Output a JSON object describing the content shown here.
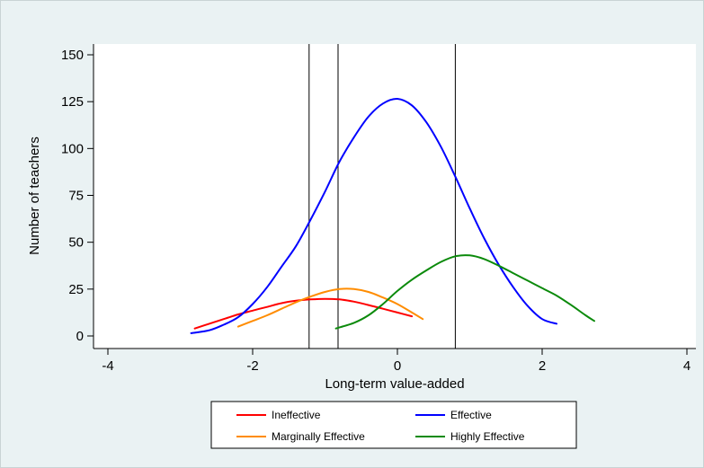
{
  "chart_data": {
    "type": "line",
    "title": "",
    "xlabel": "Long-term value-added",
    "ylabel": "Number of teachers",
    "xlim": [
      -4,
      4
    ],
    "ylim": [
      0,
      150
    ],
    "x_ticks": [
      -4,
      -2,
      0,
      2,
      4
    ],
    "x_tick_labels": [
      "-4",
      "-2",
      "0",
      "2",
      "4"
    ],
    "y_ticks": [
      0,
      25,
      50,
      75,
      100,
      125,
      150
    ],
    "y_tick_labels": [
      "0",
      "25",
      "50",
      "75",
      "100",
      "125",
      "150"
    ],
    "grid": false,
    "legend_placement": "bottom",
    "vertical_lines": [
      -1.22,
      -0.82,
      0.8
    ],
    "series": [
      {
        "name": "Ineffective",
        "color": "#ff0000",
        "x": [
          -2.8,
          -2.6,
          -2.4,
          -2.2,
          -2.0,
          -1.8,
          -1.6,
          -1.4,
          -1.2,
          -1.0,
          -0.8,
          -0.6,
          -0.4,
          -0.2,
          0.0,
          0.2
        ],
        "y": [
          4,
          6.5,
          9,
          11.5,
          13.5,
          15.5,
          17.5,
          18.8,
          19.5,
          19.8,
          19.5,
          18.3,
          16.5,
          14.5,
          12.5,
          10.5
        ]
      },
      {
        "name": "Effective",
        "color": "#0000ff",
        "x": [
          -2.85,
          -2.6,
          -2.4,
          -2.2,
          -2.0,
          -1.8,
          -1.6,
          -1.4,
          -1.2,
          -1.0,
          -0.8,
          -0.6,
          -0.4,
          -0.2,
          0.0,
          0.2,
          0.4,
          0.6,
          0.8,
          1.0,
          1.2,
          1.4,
          1.6,
          1.8,
          2.0,
          2.2
        ],
        "y": [
          1.5,
          3,
          6,
          10,
          17,
          26,
          37,
          48,
          62,
          77,
          93,
          106,
          117,
          124,
          126.5,
          123,
          114,
          101,
          85,
          68,
          52,
          38,
          26,
          16,
          9,
          6.5
        ]
      },
      {
        "name": "Marginally Effective",
        "color": "#ff8c00",
        "x": [
          -2.2,
          -2.0,
          -1.8,
          -1.6,
          -1.4,
          -1.2,
          -1.0,
          -0.8,
          -0.6,
          -0.4,
          -0.2,
          0.0,
          0.2,
          0.35
        ],
        "y": [
          5,
          8,
          11,
          14.5,
          18,
          21,
          23.5,
          25,
          25,
          23.5,
          20.5,
          17,
          12.5,
          9
        ]
      },
      {
        "name": "Highly Effective",
        "color": "#0b8a0b",
        "x": [
          -0.85,
          -0.6,
          -0.4,
          -0.2,
          0.0,
          0.2,
          0.4,
          0.6,
          0.8,
          1.0,
          1.2,
          1.4,
          1.6,
          1.8,
          2.0,
          2.2,
          2.4,
          2.6,
          2.72
        ],
        "y": [
          4,
          7,
          11,
          17,
          24,
          30,
          35,
          39.5,
          42.5,
          43,
          41,
          37.5,
          33.5,
          29.5,
          25.5,
          21.5,
          16.5,
          11,
          8
        ]
      }
    ],
    "legend": [
      {
        "name": "Ineffective",
        "color": "#ff0000"
      },
      {
        "name": "Effective",
        "color": "#0000ff"
      },
      {
        "name": "Marginally Effective",
        "color": "#ff8c00"
      },
      {
        "name": "Highly Effective",
        "color": "#0b8a0b"
      }
    ],
    "colors": {
      "background": "#eaf2f3",
      "plot_background": "#ffffff",
      "axis": "#000000"
    }
  }
}
